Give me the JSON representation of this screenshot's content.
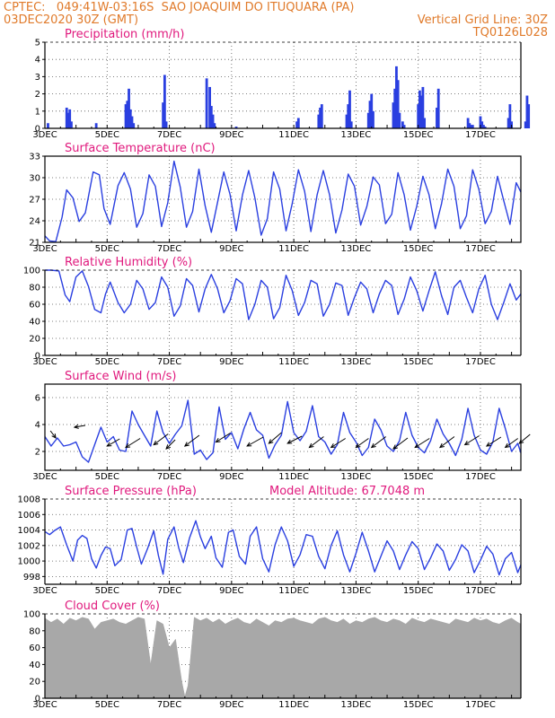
{
  "header": {
    "line1_left": "CPTEC:   049:41W-03:16S  SAO JOAQUIM DO ITUQUARA (PA)",
    "line2_left": "03DEC2020 30Z (GMT)",
    "line2_right": "Vertical Grid Line: 30Z",
    "line3_right": "TQ0126L028",
    "color": "#e07a2a"
  },
  "colors": {
    "title": "#e0197d",
    "series": "#2a3fe0",
    "cloud": "#a8a8a8",
    "wind_arrow": "#000000"
  },
  "x_ticks": [
    "3DEC",
    "5DEC",
    "7DEC",
    "9DEC",
    "11DEC",
    "13DEC",
    "15DEC",
    "17DEC"
  ],
  "chart_data": [
    {
      "type": "bar",
      "title": "Precipitation (mm/h)",
      "ylim": [
        0,
        5
      ],
      "yticks": [
        "0",
        "1",
        "2",
        "3",
        "4",
        "5"
      ],
      "x": [
        0.1,
        0.7,
        0.75,
        0.8,
        0.85,
        1.65,
        2.6,
        2.65,
        2.7,
        2.75,
        2.8,
        2.85,
        3.8,
        3.85,
        3.9,
        5.2,
        5.3,
        5.35,
        5.4,
        5.45,
        6.15,
        8.1,
        8.15,
        8.8,
        8.85,
        8.9,
        9.7,
        9.75,
        9.8,
        9.85,
        10.4,
        10.45,
        10.5,
        10.55,
        11.2,
        11.25,
        11.3,
        11.35,
        11.4,
        11.5,
        11.55,
        12.0,
        12.05,
        12.1,
        12.15,
        12.2,
        12.6,
        12.65,
        13.6,
        13.65,
        13.7,
        13.75,
        14.0,
        14.05,
        14.1,
        14.15,
        14.9,
        14.95,
        15.0,
        15.45,
        15.5,
        15.55
      ],
      "values": [
        0.3,
        1.2,
        0.9,
        1.1,
        0.4,
        0.3,
        1.4,
        1.6,
        2.3,
        1.1,
        0.7,
        0.3,
        1.5,
        3.1,
        0.4,
        2.9,
        2.4,
        1.3,
        0.8,
        0.3,
        0.1,
        0.4,
        0.6,
        0.8,
        1.2,
        1.4,
        0.8,
        1.4,
        2.2,
        0.4,
        0.9,
        1.6,
        2.0,
        1.0,
        1.5,
        2.3,
        3.6,
        2.8,
        0.9,
        0.4,
        0.2,
        1.4,
        2.2,
        1.9,
        2.4,
        0.6,
        1.2,
        2.3,
        0.6,
        0.3,
        0.2,
        0.2,
        0.7,
        0.4,
        0.2,
        0.1,
        0.6,
        1.4,
        0.4,
        0.4,
        1.9,
        1.4
      ]
    },
    {
      "type": "line",
      "title": "Surface Temperature (nC)",
      "ylim": [
        21,
        33
      ],
      "yticks": [
        "21",
        "24",
        "27",
        "30",
        "33"
      ],
      "x": [
        0,
        0.15,
        0.35,
        0.55,
        0.7,
        0.9,
        1.1,
        1.3,
        1.55,
        1.75,
        1.9,
        2.1,
        2.35,
        2.55,
        2.75,
        2.95,
        3.15,
        3.35,
        3.55,
        3.75,
        3.95,
        4.15,
        4.35,
        4.55,
        4.75,
        4.95,
        5.15,
        5.35,
        5.55,
        5.75,
        5.95,
        6.15,
        6.35,
        6.55,
        6.75,
        6.95,
        7.15,
        7.35,
        7.55,
        7.75,
        7.95,
        8.15,
        8.35,
        8.55,
        8.75,
        8.95,
        9.15,
        9.35,
        9.55,
        9.75,
        9.95,
        10.15,
        10.35,
        10.55,
        10.75,
        10.95,
        11.15,
        11.35,
        11.55,
        11.75,
        11.95,
        12.15,
        12.35,
        12.55,
        12.75,
        12.95,
        13.15,
        13.35,
        13.55,
        13.75,
        13.95,
        14.15,
        14.35,
        14.55,
        14.75,
        14.95,
        15.15,
        15.3
      ],
      "values": [
        21.9,
        21.2,
        21.1,
        24.5,
        28.3,
        27.2,
        23.9,
        25.1,
        30.8,
        30.4,
        25.7,
        23.5,
        28.9,
        30.7,
        28.4,
        23.1,
        25.0,
        30.4,
        28.8,
        23.2,
        26.5,
        32.3,
        28.7,
        23.1,
        25.3,
        31.2,
        26.1,
        22.4,
        26.6,
        30.8,
        27.7,
        22.6,
        27.6,
        31.0,
        27.2,
        22.0,
        24.3,
        30.8,
        28.4,
        22.6,
        26.4,
        31.1,
        28.1,
        22.5,
        27.6,
        31.0,
        27.6,
        22.3,
        25.5,
        30.5,
        28.8,
        23.4,
        26.0,
        30.1,
        29.0,
        23.6,
        24.9,
        30.7,
        27.6,
        22.7,
        26.0,
        30.2,
        27.6,
        22.9,
        26.4,
        31.2,
        28.8,
        22.9,
        24.7,
        31.1,
        28.4,
        23.6,
        25.3,
        30.2,
        26.8,
        23.5,
        29.3,
        28.0
      ]
    },
    {
      "type": "line",
      "title": "Relative Humidity (%)",
      "ylim": [
        0,
        100
      ],
      "yticks": [
        "0",
        "20",
        "40",
        "60",
        "80",
        "100"
      ],
      "x": [
        0,
        0.2,
        0.45,
        0.65,
        0.8,
        1.0,
        1.2,
        1.4,
        1.6,
        1.8,
        1.95,
        2.1,
        2.35,
        2.55,
        2.75,
        2.95,
        3.15,
        3.35,
        3.55,
        3.75,
        3.95,
        4.15,
        4.35,
        4.55,
        4.75,
        4.95,
        5.15,
        5.35,
        5.55,
        5.75,
        5.95,
        6.15,
        6.35,
        6.55,
        6.75,
        6.95,
        7.15,
        7.35,
        7.55,
        7.75,
        7.95,
        8.15,
        8.35,
        8.55,
        8.75,
        8.95,
        9.15,
        9.35,
        9.55,
        9.75,
        9.95,
        10.15,
        10.35,
        10.55,
        10.75,
        10.95,
        11.15,
        11.35,
        11.55,
        11.75,
        11.95,
        12.15,
        12.35,
        12.55,
        12.75,
        12.95,
        13.15,
        13.35,
        13.55,
        13.75,
        13.95,
        14.15,
        14.35,
        14.55,
        14.75,
        14.95,
        15.15,
        15.3
      ],
      "values": [
        100,
        100,
        99,
        71,
        63,
        92,
        99,
        81,
        54,
        50,
        72,
        86,
        62,
        50,
        60,
        88,
        78,
        54,
        62,
        92,
        80,
        46,
        58,
        90,
        82,
        51,
        78,
        95,
        78,
        50,
        64,
        90,
        84,
        42,
        60,
        88,
        80,
        43,
        56,
        94,
        76,
        47,
        62,
        88,
        84,
        46,
        60,
        85,
        82,
        47,
        68,
        86,
        78,
        50,
        72,
        88,
        82,
        48,
        66,
        92,
        76,
        52,
        76,
        98,
        70,
        48,
        80,
        88,
        68,
        50,
        78,
        94,
        60,
        42,
        62,
        84,
        65,
        72
      ]
    },
    {
      "type": "line",
      "title": "Surface Wind (m/s)",
      "ylim": [
        0.6,
        7.0
      ],
      "yticks": [
        "2",
        "4",
        "6"
      ],
      "x": [
        0,
        0.2,
        0.4,
        0.6,
        0.8,
        1.0,
        1.2,
        1.4,
        1.6,
        1.8,
        2.0,
        2.2,
        2.4,
        2.6,
        2.8,
        3.0,
        3.2,
        3.4,
        3.6,
        3.8,
        4.0,
        4.2,
        4.4,
        4.6,
        4.8,
        5.0,
        5.2,
        5.4,
        5.6,
        5.8,
        6.0,
        6.2,
        6.4,
        6.6,
        6.8,
        7.0,
        7.2,
        7.4,
        7.6,
        7.8,
        8.0,
        8.2,
        8.4,
        8.6,
        8.8,
        9.0,
        9.2,
        9.4,
        9.6,
        9.8,
        10.0,
        10.2,
        10.4,
        10.6,
        10.8,
        11.0,
        11.2,
        11.4,
        11.6,
        11.8,
        12.0,
        12.2,
        12.4,
        12.6,
        12.8,
        13.0,
        13.2,
        13.4,
        13.6,
        13.8,
        14.0,
        14.2,
        14.4,
        14.6,
        14.8,
        15.0,
        15.2,
        15.3
      ],
      "values": [
        3.1,
        2.4,
        3.0,
        2.4,
        2.5,
        2.7,
        1.6,
        1.2,
        2.5,
        3.8,
        2.7,
        3.1,
        2.1,
        2.0,
        5.0,
        4.0,
        3.2,
        2.4,
        5.0,
        3.4,
        2.6,
        3.3,
        3.9,
        5.8,
        1.8,
        2.1,
        1.4,
        1.9,
        5.3,
        2.9,
        3.4,
        2.2,
        3.7,
        4.9,
        3.6,
        3.2,
        1.5,
        2.5,
        3.2,
        5.7,
        3.4,
        2.8,
        3.5,
        5.4,
        3.1,
        2.7,
        1.8,
        2.5,
        4.9,
        3.4,
        2.7,
        1.7,
        2.3,
        4.4,
        3.6,
        2.4,
        2.0,
        2.8,
        4.9,
        3.2,
        2.3,
        1.9,
        2.8,
        4.4,
        3.3,
        2.6,
        1.7,
        2.9,
        5.2,
        3.2,
        2.1,
        1.8,
        2.7,
        5.2,
        3.7,
        2.0,
        2.6,
        1.9
      ],
      "arrows": [
        {
          "x": 0.35,
          "y": 3.0,
          "u": -6,
          "v": 8
        },
        {
          "x": 0.95,
          "y": 3.8,
          "u": 12,
          "v": 2
        },
        {
          "x": 2.0,
          "y": 2.4,
          "u": 14,
          "v": 8
        },
        {
          "x": 2.6,
          "y": 2.3,
          "u": 16,
          "v": 10
        },
        {
          "x": 3.5,
          "y": 2.5,
          "u": 16,
          "v": 12
        },
        {
          "x": 3.9,
          "y": 2.2,
          "u": 10,
          "v": 10
        },
        {
          "x": 4.5,
          "y": 2.4,
          "u": 16,
          "v": 12
        },
        {
          "x": 5.5,
          "y": 2.7,
          "u": 16,
          "v": 10
        },
        {
          "x": 6.5,
          "y": 2.4,
          "u": 18,
          "v": 10
        },
        {
          "x": 7.2,
          "y": 2.6,
          "u": 14,
          "v": 12
        },
        {
          "x": 7.8,
          "y": 2.6,
          "u": 16,
          "v": 8
        },
        {
          "x": 8.5,
          "y": 2.3,
          "u": 16,
          "v": 12
        },
        {
          "x": 9.2,
          "y": 2.3,
          "u": 16,
          "v": 10
        },
        {
          "x": 10.0,
          "y": 2.3,
          "u": 14,
          "v": 10
        },
        {
          "x": 10.5,
          "y": 2.3,
          "u": 16,
          "v": 12
        },
        {
          "x": 11.2,
          "y": 2.2,
          "u": 16,
          "v": 12
        },
        {
          "x": 11.9,
          "y": 2.3,
          "u": 16,
          "v": 10
        },
        {
          "x": 12.7,
          "y": 2.3,
          "u": 16,
          "v": 12
        },
        {
          "x": 13.5,
          "y": 2.5,
          "u": 16,
          "v": 10
        },
        {
          "x": 14.2,
          "y": 2.4,
          "u": 16,
          "v": 10
        },
        {
          "x": 14.8,
          "y": 2.3,
          "u": 14,
          "v": 10
        },
        {
          "x": 15.25,
          "y": 2.6,
          "u": 12,
          "v": 10
        }
      ]
    },
    {
      "type": "line",
      "title": "Surface Pressure (hPa)",
      "subtitle": "Model Altitude: 67.7048 m",
      "ylim": [
        997,
        1008
      ],
      "yticks": [
        "998",
        "1000",
        "1002",
        "1004",
        "1006",
        "1008"
      ],
      "x": [
        0,
        0.15,
        0.3,
        0.5,
        0.7,
        0.9,
        1.05,
        1.2,
        1.35,
        1.5,
        1.65,
        1.8,
        1.95,
        2.1,
        2.25,
        2.45,
        2.65,
        2.8,
        2.95,
        3.1,
        3.3,
        3.5,
        3.65,
        3.8,
        3.95,
        4.15,
        4.3,
        4.45,
        4.65,
        4.85,
        5.0,
        5.15,
        5.35,
        5.5,
        5.7,
        5.9,
        6.05,
        6.25,
        6.45,
        6.6,
        6.8,
        7.0,
        7.2,
        7.4,
        7.6,
        7.8,
        8.0,
        8.2,
        8.4,
        8.6,
        8.8,
        9.0,
        9.2,
        9.4,
        9.6,
        9.8,
        10.0,
        10.2,
        10.4,
        10.6,
        10.8,
        11.0,
        11.2,
        11.4,
        11.6,
        11.8,
        12.0,
        12.2,
        12.4,
        12.6,
        12.8,
        13.0,
        13.2,
        13.4,
        13.6,
        13.8,
        14.0,
        14.2,
        14.4,
        14.6,
        14.8,
        15.0,
        15.2,
        15.3
      ],
      "values": [
        1003.8,
        1003.4,
        1003.9,
        1004.4,
        1002.1,
        1000.0,
        1002.7,
        1003.3,
        1002.9,
        1000.3,
        999.1,
        1000.7,
        1001.8,
        1001.6,
        999.4,
        1000.2,
        1004.0,
        1004.2,
        1001.8,
        999.6,
        1001.6,
        1003.9,
        1000.7,
        998.3,
        1002.8,
        1004.4,
        1001.7,
        999.8,
        1003.0,
        1005.2,
        1003.1,
        1001.6,
        1003.2,
        1000.4,
        999.2,
        1003.7,
        1004.0,
        1000.6,
        999.6,
        1003.2,
        1004.4,
        1000.3,
        998.6,
        1002.1,
        1004.4,
        1002.6,
        999.3,
        1000.8,
        1003.4,
        1003.2,
        1000.6,
        999.0,
        1002.0,
        1003.9,
        1000.8,
        998.6,
        1001.0,
        1003.7,
        1001.3,
        998.6,
        1000.6,
        1002.6,
        1001.3,
        998.9,
        1000.8,
        1002.5,
        1001.6,
        998.9,
        1000.4,
        1002.2,
        1001.3,
        998.8,
        1000.2,
        1002.1,
        1001.3,
        998.5,
        1000.1,
        1001.9,
        1000.9,
        998.2,
        1000.3,
        1001.1,
        998.5,
        999.5
      ]
    },
    {
      "type": "area",
      "title": "Cloud Cover (%)",
      "ylim": [
        0,
        100
      ],
      "yticks": [
        "0",
        "20",
        "40",
        "60",
        "80",
        "100"
      ],
      "x": [
        0,
        0.2,
        0.4,
        0.6,
        0.8,
        1.0,
        1.2,
        1.4,
        1.6,
        1.8,
        2.0,
        2.2,
        2.4,
        2.6,
        2.8,
        3.0,
        3.2,
        3.4,
        3.6,
        3.8,
        4.0,
        4.2,
        4.4,
        4.5,
        4.6,
        4.8,
        5.0,
        5.2,
        5.4,
        5.6,
        5.8,
        6.0,
        6.2,
        6.4,
        6.6,
        6.8,
        7.0,
        7.2,
        7.4,
        7.6,
        7.8,
        8.0,
        8.2,
        8.4,
        8.6,
        8.8,
        9.0,
        9.2,
        9.4,
        9.6,
        9.8,
        10.0,
        10.2,
        10.4,
        10.6,
        10.8,
        11.0,
        11.2,
        11.4,
        11.6,
        11.8,
        12.0,
        12.2,
        12.4,
        12.6,
        12.8,
        13.0,
        13.2,
        13.4,
        13.6,
        13.8,
        14.0,
        14.2,
        14.4,
        14.6,
        14.8,
        15.0,
        15.2,
        15.3
      ],
      "values": [
        95,
        90,
        94,
        88,
        95,
        92,
        96,
        94,
        82,
        90,
        92,
        94,
        90,
        88,
        92,
        96,
        94,
        40,
        92,
        88,
        60,
        70,
        20,
        2,
        15,
        96,
        92,
        95,
        90,
        94,
        88,
        92,
        95,
        90,
        88,
        94,
        90,
        86,
        92,
        90,
        94,
        95,
        92,
        90,
        88,
        94,
        96,
        92,
        90,
        94,
        88,
        92,
        90,
        94,
        96,
        92,
        90,
        94,
        92,
        88,
        95,
        92,
        90,
        94,
        92,
        90,
        88,
        94,
        92,
        90,
        95,
        92,
        94,
        90,
        88,
        92,
        95,
        90,
        88
      ]
    }
  ]
}
